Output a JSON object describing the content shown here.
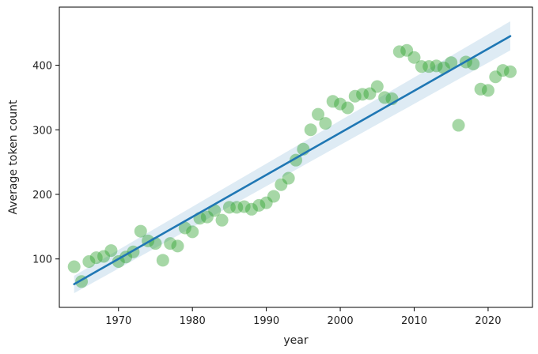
{
  "chart_data": {
    "type": "scatter",
    "title": "",
    "xlabel": "year",
    "ylabel": "Average token count",
    "xlim": [
      1962,
      2026
    ],
    "ylim": [
      25,
      490
    ],
    "xticks": [
      1970,
      1980,
      1990,
      2000,
      2010,
      2020
    ],
    "yticks": [
      100,
      200,
      300,
      400
    ],
    "grid": false,
    "legend": "none",
    "colors": {
      "points": "#2ca02c",
      "line": "#1f77b4",
      "band": "#1f77b4"
    },
    "points": {
      "x": [
        1964,
        1965,
        1966,
        1967,
        1968,
        1969,
        1970,
        1971,
        1972,
        1973,
        1974,
        1975,
        1976,
        1977,
        1978,
        1979,
        1980,
        1981,
        1982,
        1983,
        1984,
        1985,
        1986,
        1987,
        1988,
        1989,
        1990,
        1991,
        1992,
        1993,
        1994,
        1995,
        1996,
        1997,
        1998,
        1999,
        2000,
        2001,
        2002,
        2003,
        2004,
        2005,
        2006,
        2007,
        2008,
        2009,
        2010,
        2011,
        2012,
        2013,
        2014,
        2015,
        2016,
        2017,
        2018,
        2019,
        2020,
        2021,
        2022,
        2023
      ],
      "y": [
        88,
        65,
        96,
        102,
        104,
        113,
        96,
        103,
        111,
        143,
        128,
        124,
        98,
        124,
        120,
        148,
        142,
        163,
        165,
        175,
        160,
        180,
        180,
        181,
        177,
        183,
        187,
        197,
        215,
        225,
        253,
        270,
        300,
        324,
        310,
        344,
        340,
        334,
        352,
        355,
        356,
        367,
        350,
        348,
        421,
        423,
        412,
        398,
        398,
        399,
        396,
        404,
        307,
        405,
        402,
        363,
        361,
        382,
        392,
        390
      ]
    },
    "regression": {
      "x": [
        1964,
        2023
      ],
      "y": [
        61,
        445
      ],
      "band_lower": [
        47,
        423
      ],
      "band_upper": [
        74,
        468
      ]
    }
  }
}
